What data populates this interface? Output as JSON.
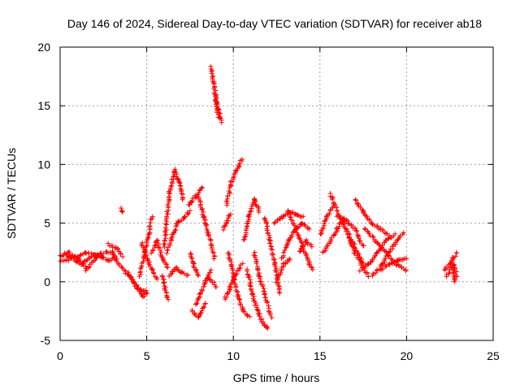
{
  "chart_data": {
    "type": "scatter",
    "title": "Day 146 of 2024, Sidereal Day-to-day VTEC variation (SDTVAR) for receiver ab18",
    "xlabel": "GPS time / hours",
    "ylabel": "SDTVAR / TECUs",
    "xlim": [
      0,
      25
    ],
    "ylim": [
      -5,
      20
    ],
    "xticks": [
      "0",
      "5",
      "10",
      "15",
      "20",
      "25"
    ],
    "yticks": [
      "-5",
      "0",
      "5",
      "10",
      "15",
      "20"
    ],
    "grid": true,
    "marker": "+",
    "color": "#ff0000",
    "series": [
      {
        "name": "SDTVAR",
        "tracks": [
          {
            "x": [
              0.0,
              0.5,
              1.0,
              1.5
            ],
            "y": [
              2.2,
              2.5,
              2.0,
              1.2
            ]
          },
          {
            "x": [
              0.0,
              0.8,
              1.5,
              2.5
            ],
            "y": [
              1.7,
              2.0,
              2.5,
              2.2
            ]
          },
          {
            "x": [
              0.3,
              1.2,
              2.0,
              2.8,
              3.2
            ],
            "y": [
              2.4,
              1.5,
              2.3,
              1.8,
              2.1
            ]
          },
          {
            "x": [
              1.5,
              2.3,
              3.0,
              3.4
            ],
            "y": [
              1.0,
              2.4,
              2.6,
              1.5
            ]
          },
          {
            "x": [
              2.8,
              3.3,
              3.6
            ],
            "y": [
              3.2,
              2.8,
              2.2
            ]
          },
          {
            "x": [
              3.55,
              3.6
            ],
            "y": [
              6.2,
              5.9
            ]
          },
          {
            "x": [
              3.5,
              4.0,
              4.5,
              5.0
            ],
            "y": [
              1.3,
              0.5,
              -0.5,
              -1.0
            ]
          },
          {
            "x": [
              3.9,
              4.3,
              4.8,
              5.0
            ],
            "y": [
              0.8,
              -0.2,
              -1.3,
              -0.8
            ]
          },
          {
            "x": [
              4.6,
              4.9,
              5.1,
              5.3
            ],
            "y": [
              0.5,
              2.5,
              4.0,
              5.5
            ]
          },
          {
            "x": [
              4.7,
              5.0,
              5.3,
              5.6
            ],
            "y": [
              3.3,
              2.0,
              1.0,
              0.3
            ]
          },
          {
            "x": [
              5.3,
              5.6,
              5.9,
              6.2
            ],
            "y": [
              2.5,
              3.5,
              2.0,
              1.2
            ]
          },
          {
            "x": [
              5.9,
              6.0,
              6.1,
              6.2
            ],
            "y": [
              0.5,
              0.0,
              -1.0,
              -1.5
            ]
          },
          {
            "x": [
              6.0,
              6.3,
              6.6,
              6.9,
              7.1
            ],
            "y": [
              3.0,
              7.5,
              9.5,
              8.5,
              7.0
            ]
          },
          {
            "x": [
              6.2,
              6.5,
              6.8,
              7.2,
              7.5
            ],
            "y": [
              2.5,
              4.0,
              5.0,
              5.5,
              6.0
            ]
          },
          {
            "x": [
              6.3,
              6.7,
              7.0,
              7.4
            ],
            "y": [
              0.5,
              1.2,
              0.8,
              0.5
            ]
          },
          {
            "x": [
              7.5,
              7.7,
              8.0
            ],
            "y": [
              2.5,
              1.5,
              0.5
            ]
          },
          {
            "x": [
              7.4,
              7.6,
              7.8,
              8.2
            ],
            "y": [
              6.5,
              6.8,
              7.3,
              8.0
            ]
          },
          {
            "x": [
              7.8,
              8.1,
              8.4,
              8.7
            ],
            "y": [
              -2.0,
              -1.0,
              0.0,
              1.0
            ]
          },
          {
            "x": [
              7.6,
              8.0,
              8.4
            ],
            "y": [
              -2.5,
              -3.0,
              -1.8
            ]
          },
          {
            "x": [
              8.0,
              8.3,
              8.6,
              8.9
            ],
            "y": [
              7.2,
              5.5,
              4.0,
              2.0
            ]
          },
          {
            "x": [
              8.5,
              8.8,
              9.0
            ],
            "y": [
              0.3,
              0.0,
              -0.5
            ]
          },
          {
            "x": [
              8.7,
              8.85,
              9.0,
              9.15
            ],
            "y": [
              18.3,
              17.0,
              15.5,
              14.0
            ]
          },
          {
            "x": [
              8.95,
              9.1,
              9.3
            ],
            "y": [
              16.0,
              14.8,
              13.6
            ]
          },
          {
            "x": [
              9.4,
              9.6,
              9.8
            ],
            "y": [
              4.5,
              5.0,
              5.8
            ]
          },
          {
            "x": [
              9.6,
              9.9,
              10.2,
              10.5
            ],
            "y": [
              6.5,
              8.5,
              9.5,
              10.5
            ]
          },
          {
            "x": [
              9.5,
              9.8,
              10.1,
              10.5
            ],
            "y": [
              -1.5,
              -0.5,
              0.5,
              1.5
            ]
          },
          {
            "x": [
              9.7,
              10.0,
              10.3,
              10.6,
              10.9
            ],
            "y": [
              2.5,
              0.5,
              -1.5,
              -2.5,
              -3.0
            ]
          },
          {
            "x": [
              10.6,
              10.9,
              11.2,
              11.5
            ],
            "y": [
              3.5,
              5.5,
              7.0,
              6.0
            ]
          },
          {
            "x": [
              10.8,
              11.1,
              11.4,
              11.7,
              12.0
            ],
            "y": [
              1.0,
              -1.0,
              -2.5,
              -3.5,
              -4.0
            ]
          },
          {
            "x": [
              11.2,
              11.5,
              11.8,
              12.2
            ],
            "y": [
              2.5,
              0.5,
              -1.0,
              -3.0
            ]
          },
          {
            "x": [
              11.8,
              12.1,
              12.4,
              12.7
            ],
            "y": [
              5.5,
              3.5,
              1.5,
              -1.0
            ]
          },
          {
            "x": [
              12.4,
              12.8,
              13.2,
              13.6,
              14.0
            ],
            "y": [
              5.0,
              5.5,
              6.0,
              5.8,
              5.5
            ]
          },
          {
            "x": [
              12.5,
              12.9,
              13.3
            ],
            "y": [
              0.0,
              1.5,
              2.0
            ]
          },
          {
            "x": [
              12.8,
              13.2,
              13.6,
              14.0,
              14.4
            ],
            "y": [
              2.0,
              3.5,
              4.5,
              5.0,
              4.5
            ]
          },
          {
            "x": [
              13.2,
              13.6,
              14.0,
              14.4,
              14.6
            ],
            "y": [
              6.0,
              4.5,
              3.0,
              1.5,
              1.0
            ]
          },
          {
            "x": [
              13.8,
              14.2,
              14.5
            ],
            "y": [
              2.5,
              3.5,
              3.0
            ]
          },
          {
            "x": [
              15.0,
              15.4,
              15.8
            ],
            "y": [
              4.0,
              5.5,
              6.5
            ]
          },
          {
            "x": [
              15.2,
              15.6,
              16.0,
              16.4
            ],
            "y": [
              2.5,
              3.5,
              4.5,
              5.5
            ]
          },
          {
            "x": [
              15.6,
              16.0,
              16.5,
              17.0,
              17.5
            ],
            "y": [
              7.5,
              6.0,
              4.5,
              3.0,
              1.5
            ]
          },
          {
            "x": [
              16.0,
              16.5,
              17.0,
              17.5
            ],
            "y": [
              5.5,
              5.2,
              4.5,
              3.0
            ]
          },
          {
            "x": [
              16.6,
              17.0,
              17.4,
              17.8
            ],
            "y": [
              4.0,
              2.5,
              1.5,
              0.5
            ]
          },
          {
            "x": [
              17.0,
              17.5,
              18.0,
              18.5,
              19.0
            ],
            "y": [
              7.0,
              6.0,
              5.0,
              4.5,
              4.0
            ]
          },
          {
            "x": [
              17.3,
              17.8,
              18.3,
              18.8,
              19.3
            ],
            "y": [
              1.0,
              1.5,
              2.5,
              3.5,
              4.0
            ]
          },
          {
            "x": [
              17.6,
              18.2,
              18.8,
              19.4,
              20.0
            ],
            "y": [
              4.5,
              3.5,
              2.5,
              1.5,
              1.0
            ]
          },
          {
            "x": [
              18.0,
              18.6,
              19.2,
              19.8
            ],
            "y": [
              0.5,
              1.5,
              3.0,
              4.2
            ]
          },
          {
            "x": [
              18.5,
              19.0,
              19.5,
              20.0
            ],
            "y": [
              1.0,
              1.5,
              1.8,
              2.0
            ]
          },
          {
            "x": [
              22.2,
              22.5,
              22.9
            ],
            "y": [
              1.0,
              1.5,
              2.5
            ]
          },
          {
            "x": [
              22.3,
              22.7,
              22.9
            ],
            "y": [
              0.5,
              1.5,
              0.5
            ]
          },
          {
            "x": [
              22.6,
              22.8
            ],
            "y": [
              2.0,
              0.0
            ]
          }
        ]
      }
    ]
  }
}
